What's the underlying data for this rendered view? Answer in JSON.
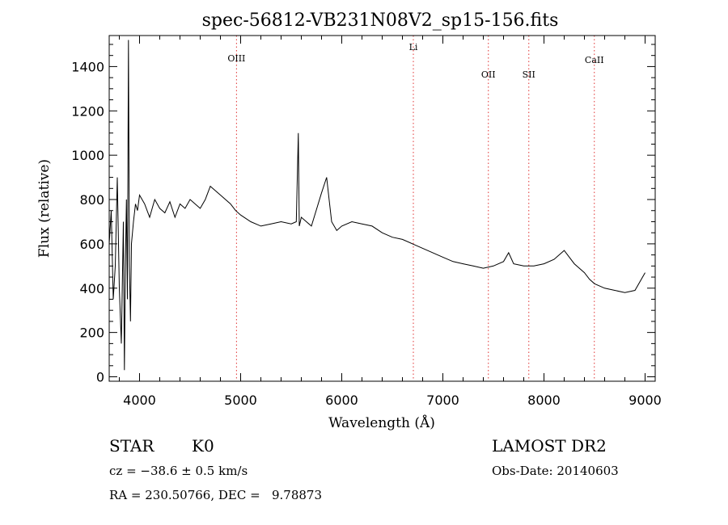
{
  "chart_data": {
    "type": "line",
    "title": "spec-56812-VB231N08V2_sp15-156.fits",
    "xlabel": "Wavelength (Å)",
    "ylabel": "Flux (relative)",
    "xlim": [
      3700,
      9100
    ],
    "ylim": [
      -20,
      1540
    ],
    "xticks": [
      4000,
      5000,
      6000,
      7000,
      8000,
      9000
    ],
    "yticks": [
      0,
      200,
      400,
      600,
      800,
      1000,
      1200,
      1400
    ],
    "grid": false,
    "line_color": "#000000",
    "marker_color": "#e03030",
    "series": [
      {
        "x": [
          3700,
          3720,
          3740,
          3760,
          3780,
          3800,
          3820,
          3840,
          3850,
          3860,
          3870,
          3880,
          3890,
          3900,
          3910,
          3920,
          3940,
          3960,
          3980,
          4000,
          4050,
          4100,
          4150,
          4200,
          4250,
          4300,
          4350,
          4400,
          4450,
          4500,
          4600,
          4650,
          4700,
          4800,
          4900,
          4950,
          5000,
          5100,
          5200,
          5300,
          5400,
          5500,
          5550,
          5570,
          5580,
          5600,
          5700,
          5800,
          5850,
          5880,
          5900,
          5950,
          6000,
          6100,
          6200,
          6300,
          6400,
          6500,
          6600,
          6700,
          6800,
          6900,
          7000,
          7100,
          7200,
          7300,
          7400,
          7500,
          7600,
          7650,
          7700,
          7800,
          7900,
          8000,
          8100,
          8200,
          8300,
          8400,
          8450,
          8500,
          8600,
          8700,
          8800,
          8900,
          9000
        ],
        "y": [
          600,
          750,
          350,
          500,
          900,
          400,
          150,
          700,
          30,
          500,
          800,
          350,
          1520,
          500,
          250,
          600,
          700,
          780,
          750,
          820,
          780,
          720,
          800,
          760,
          740,
          790,
          720,
          780,
          760,
          800,
          760,
          800,
          860,
          820,
          780,
          750,
          730,
          700,
          680,
          690,
          700,
          690,
          700,
          1100,
          680,
          720,
          680,
          830,
          900,
          780,
          700,
          660,
          680,
          700,
          690,
          680,
          650,
          630,
          620,
          600,
          580,
          560,
          540,
          520,
          510,
          500,
          490,
          500,
          520,
          560,
          510,
          500,
          500,
          510,
          530,
          570,
          510,
          470,
          440,
          420,
          400,
          390,
          380,
          390,
          470
        ]
      }
    ],
    "annotations": [
      {
        "label": "OIII",
        "x": 4959
      },
      {
        "label": "Li",
        "x": 6708
      },
      {
        "label": "OII",
        "x": 7450
      },
      {
        "label": "SII",
        "x": 7850
      },
      {
        "label": "CaII",
        "x": 8498
      }
    ]
  },
  "info": {
    "object_class": "STAR",
    "subclass": "K0",
    "cz": "cz = −38.6 ± 0.5 km/s",
    "coords": "RA = 230.50766, DEC =   9.78873",
    "survey": "LAMOST DR2",
    "obs_date": "Obs-Date: 20140603"
  }
}
